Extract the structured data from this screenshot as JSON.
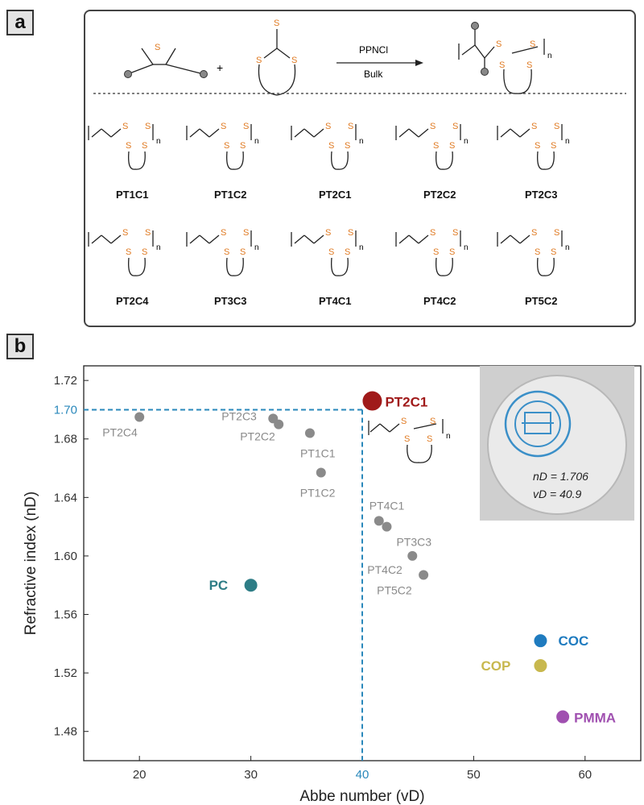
{
  "panel_a": {
    "label": "a",
    "reaction": {
      "reagent_top": "PPNCl",
      "reagent_bottom": "Bulk",
      "plus": "+",
      "atom": "S",
      "sub_n": "n"
    },
    "structures": [
      "PT1C1",
      "PT1C2",
      "PT2C1",
      "PT2C2",
      "PT2C3",
      "PT2C4",
      "PT3C3",
      "PT4C1",
      "PT4C2",
      "PT5C2"
    ]
  },
  "panel_b": {
    "label": "b",
    "photo": {
      "line1": "nD = 1.706",
      "line2": "vD = 40.9"
    },
    "inset": {
      "atom": "S",
      "sub_n": "n"
    }
  },
  "chart_data": {
    "type": "scatter",
    "xlabel": "Abbe number (vD)",
    "ylabel": "Refractive index (nD)",
    "xlim": [
      15,
      65
    ],
    "ylim": [
      1.46,
      1.73
    ],
    "x_ticks": [
      20,
      30,
      40,
      50,
      60
    ],
    "y_ticks": [
      1.48,
      1.52,
      1.56,
      1.6,
      1.64,
      1.68,
      1.72
    ],
    "highlight_x_tick": "40",
    "highlight_y_tick": "1.70",
    "reference_lines": {
      "x": 40,
      "y": 1.7
    },
    "colors": {
      "gray": "#8a8a8a",
      "highlight": "#a01a1a",
      "pc": "#2e7d86",
      "coc": "#1f7bbf",
      "cop": "#c8b84e",
      "pmma": "#a050b0",
      "dashed": "#2a88bb"
    },
    "points": [
      {
        "name": "PT2C1",
        "x": 40.9,
        "y": 1.706,
        "color": "#a01a1a"
      },
      {
        "name": "PT2C4",
        "x": 20.0,
        "y": 1.695,
        "color": "#8a8a8a"
      },
      {
        "name": "PT2C3",
        "x": 32.0,
        "y": 1.694,
        "color": "#8a8a8a"
      },
      {
        "name": "PT2C2",
        "x": 32.5,
        "y": 1.69,
        "color": "#8a8a8a"
      },
      {
        "name": "PT1C1",
        "x": 35.3,
        "y": 1.684,
        "color": "#8a8a8a"
      },
      {
        "name": "PT1C2",
        "x": 36.3,
        "y": 1.657,
        "color": "#8a8a8a"
      },
      {
        "name": "PT4C1",
        "x": 41.5,
        "y": 1.624,
        "color": "#8a8a8a"
      },
      {
        "name": "PT3C3",
        "x": 42.2,
        "y": 1.62,
        "color": "#8a8a8a"
      },
      {
        "name": "PT4C2",
        "x": 44.5,
        "y": 1.6,
        "color": "#8a8a8a"
      },
      {
        "name": "PT5C2",
        "x": 45.5,
        "y": 1.587,
        "color": "#8a8a8a"
      },
      {
        "name": "PC",
        "x": 30.0,
        "y": 1.58,
        "color": "#2e7d86"
      },
      {
        "name": "COC",
        "x": 56.0,
        "y": 1.542,
        "color": "#1f7bbf"
      },
      {
        "name": "COP",
        "x": 56.0,
        "y": 1.525,
        "color": "#c8b84e"
      },
      {
        "name": "PMMA",
        "x": 58.0,
        "y": 1.49,
        "color": "#a050b0"
      }
    ]
  }
}
